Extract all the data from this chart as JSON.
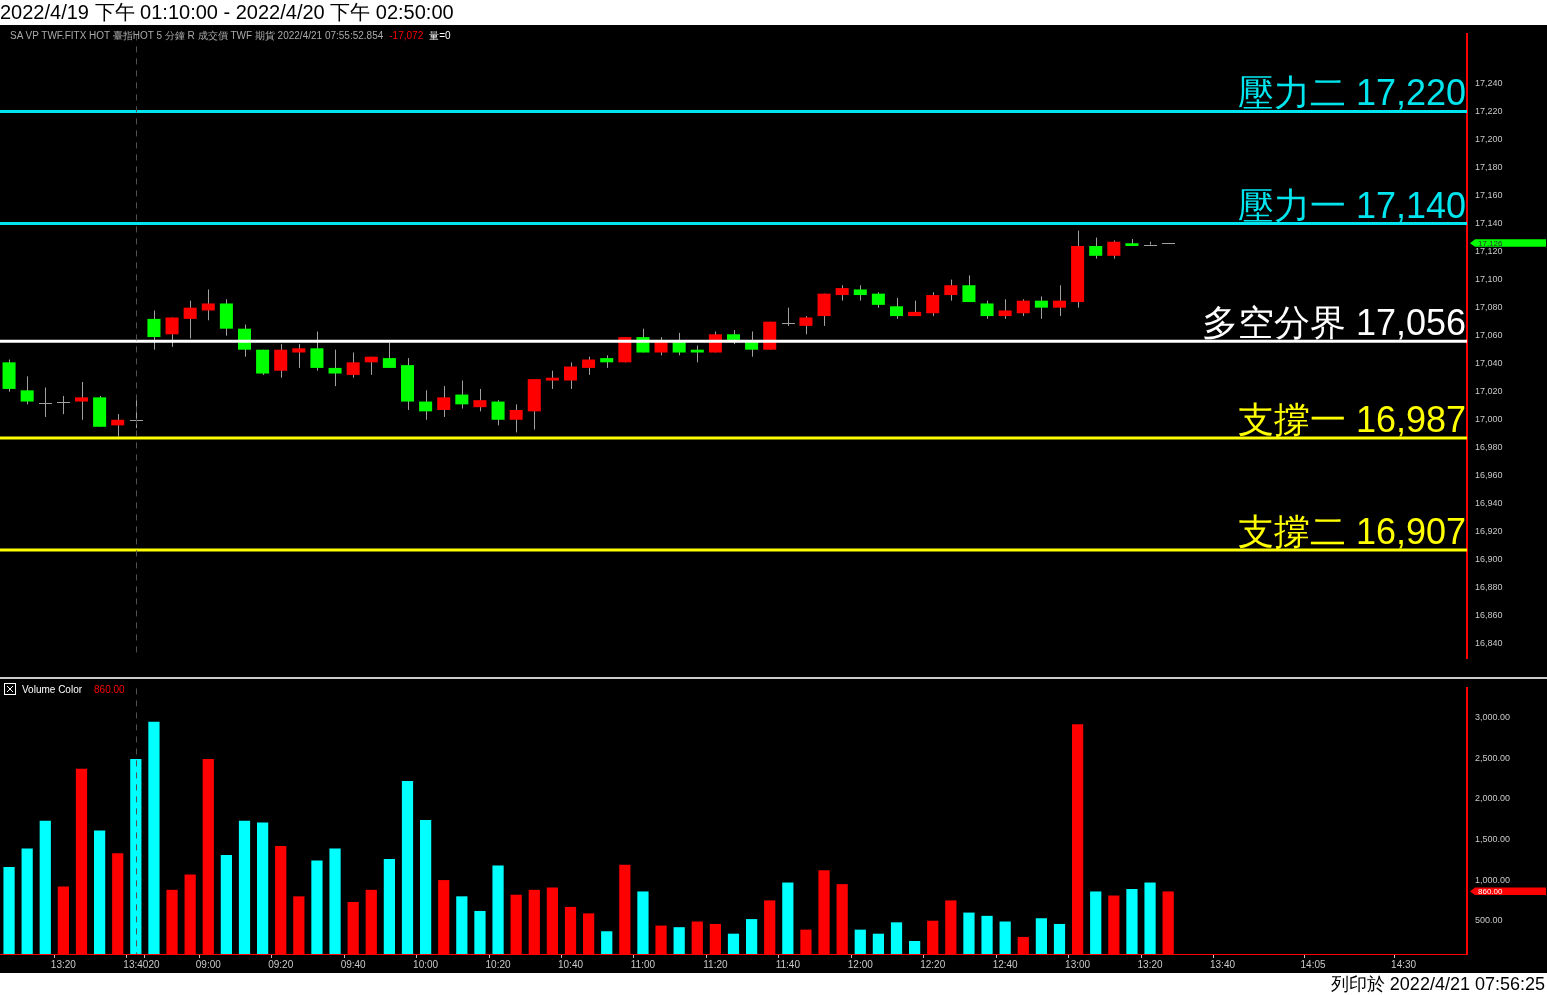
{
  "chart_data": [
    {
      "type": "candlestick",
      "title": "2022/4/19 下午 01:10:00 - 2022/4/20 下午 02:50:00",
      "subtitle": "SA VP TWF.FITX HOT 臺指HOT 5 分鐘 R 成交價 TWF 期貨 2022/4/21 07:55:52.854",
      "categories": [
        null,
        null,
        null,
        "13:20",
        null,
        null,
        null,
        "13:40",
        "20",
        null,
        null,
        "09:00",
        null,
        null,
        null,
        "09:20",
        null,
        null,
        null,
        "09:40",
        null,
        null,
        null,
        "10:00",
        null,
        null,
        null,
        "10:20",
        null,
        null,
        null,
        "10:40",
        null,
        null,
        null,
        "11:00",
        null,
        null,
        null,
        "11:20",
        null,
        null,
        null,
        "11:40",
        null,
        null,
        null,
        "12:00",
        null,
        null,
        null,
        "12:20",
        null,
        null,
        null,
        "12:40",
        null,
        null,
        null,
        "13:00",
        null,
        null,
        null,
        "13:20",
        null,
        null,
        null,
        "13:40",
        null,
        null,
        null,
        null,
        "14:05",
        null,
        null,
        null,
        null,
        "14:30",
        null,
        null,
        null
      ],
      "ohlc": [
        [
          17041,
          17043,
          17020,
          17022
        ],
        [
          17021,
          17031,
          17011,
          17013
        ],
        [
          17012,
          17023,
          17002,
          17012
        ],
        [
          17013,
          17017,
          17004,
          17013
        ],
        [
          17013,
          17027,
          17000,
          17016
        ],
        [
          17016,
          17017,
          16995,
          16995
        ],
        [
          16996,
          17004,
          16988,
          17000
        ],
        [
          17000,
          17014,
          16994,
          17000
        ],
        [
          17072,
          17078,
          17050,
          17059
        ],
        [
          17061,
          17073,
          17052,
          17073
        ],
        [
          17072,
          17085,
          17058,
          17080
        ],
        [
          17078,
          17093,
          17071,
          17083
        ],
        [
          17083,
          17086,
          17060,
          17065
        ],
        [
          17065,
          17068,
          17045,
          17050
        ],
        [
          17050,
          17050,
          17032,
          17033
        ],
        [
          17035,
          17054,
          17030,
          17050
        ],
        [
          17048,
          17054,
          17037,
          17051
        ],
        [
          17051,
          17063,
          17035,
          17037
        ],
        [
          17037,
          17050,
          17024,
          17033
        ],
        [
          17032,
          17048,
          17030,
          17041
        ],
        [
          17041,
          17045,
          17032,
          17045
        ],
        [
          17044,
          17055,
          17037,
          17037
        ],
        [
          17039,
          17044,
          17007,
          17013
        ],
        [
          17013,
          17021,
          17000,
          17006
        ],
        [
          17007,
          17024,
          17002,
          17016
        ],
        [
          17018,
          17028,
          17008,
          17011
        ],
        [
          17009,
          17022,
          17006,
          17014
        ],
        [
          17013,
          17014,
          16996,
          17000
        ],
        [
          17000,
          17011,
          16991,
          17007
        ],
        [
          17006,
          17029,
          16993,
          17029
        ],
        [
          17028,
          17035,
          17022,
          17030
        ],
        [
          17028,
          17041,
          17022,
          17038
        ],
        [
          17037,
          17045,
          17032,
          17043
        ],
        [
          17044,
          17046,
          17037,
          17041
        ],
        [
          17041,
          17059,
          17041,
          17059
        ],
        [
          17059,
          17065,
          17048,
          17048
        ],
        [
          17048,
          17059,
          17046,
          17056
        ],
        [
          17056,
          17062,
          17046,
          17048
        ],
        [
          17050,
          17053,
          17041,
          17048
        ],
        [
          17048,
          17063,
          17048,
          17061
        ],
        [
          17061,
          17064,
          17054,
          17057
        ],
        [
          17056,
          17063,
          17045,
          17050
        ],
        [
          17050,
          17070,
          17050,
          17070
        ],
        [
          17069,
          17080,
          17067,
          17069
        ],
        [
          17067,
          17074,
          17061,
          17073
        ],
        [
          17074,
          17090,
          17067,
          17090
        ],
        [
          17089,
          17096,
          17085,
          17094
        ],
        [
          17093,
          17096,
          17085,
          17089
        ],
        [
          17090,
          17091,
          17080,
          17082
        ],
        [
          17081,
          17087,
          17072,
          17074
        ],
        [
          17074,
          17085,
          17074,
          17077
        ],
        [
          17076,
          17091,
          17074,
          17089
        ],
        [
          17089,
          17100,
          17085,
          17096
        ],
        [
          17096,
          17103,
          17084,
          17084
        ],
        [
          17083,
          17085,
          17072,
          17074
        ],
        [
          17074,
          17086,
          17072,
          17078
        ],
        [
          17076,
          17086,
          17074,
          17085
        ],
        [
          17085,
          17088,
          17072,
          17080
        ],
        [
          17080,
          17096,
          17074,
          17085
        ],
        [
          17084,
          17135,
          17080,
          17124
        ],
        [
          17124,
          17130,
          17115,
          17117
        ],
        [
          17117,
          17128,
          17115,
          17127
        ],
        [
          17126,
          17129,
          17124,
          17124
        ],
        [
          17125,
          17127,
          17125,
          17125
        ],
        [
          17126,
          17126,
          17126,
          17126
        ],
        null,
        null,
        null,
        null,
        null,
        null,
        null,
        null,
        null,
        null,
        null,
        null,
        null,
        null,
        null,
        null
      ],
      "colors": [
        "#00ff00",
        "#00ff00",
        "#a0a0a0",
        "#a0a0a0",
        "#ff0000",
        "#00ff00",
        "#ff0000",
        "#a0a0a0",
        "#00ff00",
        "#ff0000",
        "#ff0000",
        "#ff0000",
        "#00ff00",
        "#00ff00",
        "#00ff00",
        "#ff0000",
        "#ff0000",
        "#00ff00",
        "#00ff00",
        "#ff0000",
        "#ff0000",
        "#00ff00",
        "#00ff00",
        "#00ff00",
        "#ff0000",
        "#00ff00",
        "#ff0000",
        "#00ff00",
        "#ff0000",
        "#ff0000",
        "#ff0000",
        "#ff0000",
        "#ff0000",
        "#00ff00",
        "#ff0000",
        "#00ff00",
        "#ff0000",
        "#00ff00",
        "#00ff00",
        "#ff0000",
        "#00ff00",
        "#00ff00",
        "#ff0000",
        "#a0a0a0",
        "#ff0000",
        "#ff0000",
        "#ff0000",
        "#00ff00",
        "#00ff00",
        "#00ff00",
        "#ff0000",
        "#ff0000",
        "#ff0000",
        "#00ff00",
        "#00ff00",
        "#ff0000",
        "#ff0000",
        "#00ff00",
        "#ff0000",
        "#ff0000",
        "#00ff00",
        "#ff0000",
        "#00ff00",
        "#a0a0a0",
        "#a0a0a0",
        null,
        null,
        null,
        null,
        null,
        null,
        null,
        null,
        null,
        null,
        null,
        null,
        null,
        null,
        null,
        null
      ],
      "ylim": [
        16830,
        17275
      ],
      "yticks": [
        {
          "value": 16840,
          "label": "16,840"
        },
        {
          "value": 16860,
          "label": "16,860"
        },
        {
          "value": 16880,
          "label": "16,880"
        },
        {
          "value": 16900,
          "label": "16,900"
        },
        {
          "value": 16920,
          "label": "16,920"
        },
        {
          "value": 16940,
          "label": "16,940"
        },
        {
          "value": 16960,
          "label": "16,960"
        },
        {
          "value": 16980,
          "label": "16,980"
        },
        {
          "value": 17000,
          "label": "17,000"
        },
        {
          "value": 17020,
          "label": "17,020"
        },
        {
          "value": 17040,
          "label": "17,040"
        },
        {
          "value": 17060,
          "label": "17,060"
        },
        {
          "value": 17080,
          "label": "17,080"
        },
        {
          "value": 17100,
          "label": "17,100"
        },
        {
          "value": 17120,
          "label": "17,120"
        },
        {
          "value": 17140,
          "label": "17,140"
        },
        {
          "value": 17160,
          "label": "17,160"
        },
        {
          "value": 17180,
          "label": "17,180"
        },
        {
          "value": 17200,
          "label": "17,200"
        },
        {
          "value": 17220,
          "label": "17,220"
        },
        {
          "value": 17240,
          "label": "17,240"
        }
      ],
      "tick_labels": "y",
      "ref_lines": [
        {
          "axis": "y",
          "value": 17220,
          "label": "壓力二 17,220",
          "color": "#00e5ee"
        },
        {
          "axis": "y",
          "value": 17140,
          "label": "壓力一 17,140",
          "color": "#00e5ee"
        },
        {
          "axis": "y",
          "value": 17056,
          "label": "多空分界 17,056",
          "color": "#ffffff"
        },
        {
          "axis": "y",
          "value": 16987,
          "label": "支撐一 16,987",
          "color": "#ffff00"
        },
        {
          "axis": "y",
          "value": 16907,
          "label": "支撐二 16,907",
          "color": "#ffff00"
        },
        {
          "axis": "x",
          "value": "13:40",
          "color": "#505050",
          "line_style": "dashed"
        }
      ],
      "annotations": [
        "-17,072",
        "量=0",
        "17,126"
      ]
    },
    {
      "type": "bar",
      "title": "Volume Color",
      "categories": [
        null,
        null,
        null,
        "13:20",
        null,
        null,
        null,
        "13:40",
        "20",
        null,
        null,
        "09:00",
        null,
        null,
        null,
        "09:20",
        null,
        null,
        null,
        "09:40",
        null,
        null,
        null,
        "10:00",
        null,
        null,
        null,
        "10:20",
        null,
        null,
        null,
        "10:40",
        null,
        null,
        null,
        "11:00",
        null,
        null,
        null,
        "11:20",
        null,
        null,
        null,
        "11:40",
        null,
        null,
        null,
        "12:00",
        null,
        null,
        null,
        "12:20",
        null,
        null,
        null,
        "12:40",
        null,
        null,
        null,
        "13:00",
        null,
        null,
        null,
        "13:20",
        null,
        null,
        null,
        "13:40",
        null,
        null,
        null,
        null,
        "14:05",
        null,
        null,
        null,
        null,
        "14:30",
        null,
        null,
        null
      ],
      "values": [
        1160,
        1390,
        1730,
        920,
        2370,
        1610,
        1330,
        2490,
        2950,
        880,
        1070,
        2490,
        1310,
        1730,
        1710,
        1420,
        800,
        1240,
        1390,
        730,
        880,
        1260,
        2220,
        1740,
        1000,
        800,
        620,
        1180,
        820,
        880,
        910,
        670,
        590,
        370,
        1190,
        860,
        440,
        420,
        490,
        460,
        340,
        520,
        750,
        970,
        390,
        1120,
        950,
        390,
        340,
        480,
        250,
        500,
        750,
        600,
        560,
        490,
        300,
        530,
        460,
        2920,
        860,
        810,
        890,
        970,
        860,
        null,
        null,
        null,
        null,
        null,
        null,
        null,
        null,
        null,
        null,
        null,
        null,
        null,
        null,
        null,
        null
      ],
      "colors": [
        "#00ffff",
        "#00ffff",
        "#00ffff",
        "#ff0000",
        "#ff0000",
        "#00ffff",
        "#ff0000",
        "#00ffff",
        "#00ffff",
        "#ff0000",
        "#ff0000",
        "#ff0000",
        "#00ffff",
        "#00ffff",
        "#00ffff",
        "#ff0000",
        "#ff0000",
        "#00ffff",
        "#00ffff",
        "#ff0000",
        "#ff0000",
        "#00ffff",
        "#00ffff",
        "#00ffff",
        "#ff0000",
        "#00ffff",
        "#00ffff",
        "#00ffff",
        "#ff0000",
        "#ff0000",
        "#ff0000",
        "#ff0000",
        "#ff0000",
        "#00ffff",
        "#ff0000",
        "#00ffff",
        "#ff0000",
        "#00ffff",
        "#ff0000",
        "#ff0000",
        "#00ffff",
        "#00ffff",
        "#ff0000",
        "#00ffff",
        "#ff0000",
        "#ff0000",
        "#ff0000",
        "#00ffff",
        "#00ffff",
        "#00ffff",
        "#00ffff",
        "#ff0000",
        "#ff0000",
        "#00ffff",
        "#00ffff",
        "#00ffff",
        "#ff0000",
        "#00ffff",
        "#00ffff",
        "#ff0000",
        "#00ffff",
        "#ff0000",
        "#00ffff",
        "#00ffff",
        "#ff0000",
        null,
        null,
        null,
        null,
        null,
        null,
        null,
        null,
        null,
        null,
        null,
        null,
        null,
        null,
        null,
        null
      ],
      "ylim": [
        90,
        3360
      ],
      "yticks": [
        {
          "value": 500,
          "label": "500.00"
        },
        {
          "value": 1000,
          "label": "1,000.00"
        },
        {
          "value": 1500,
          "label": "1,500.00"
        },
        {
          "value": 2000,
          "label": "2,000.00"
        },
        {
          "value": 2500,
          "label": "2,500.00"
        },
        {
          "value": 3000,
          "label": "3,000.00"
        }
      ],
      "ref_lines": [
        {
          "axis": "x",
          "value": "13:40",
          "color": "#505050",
          "line_style": "dashed"
        }
      ],
      "annotations": [
        "860.00",
        "860.00",
        "列印於 2022/4/21 07:56:25"
      ]
    }
  ]
}
